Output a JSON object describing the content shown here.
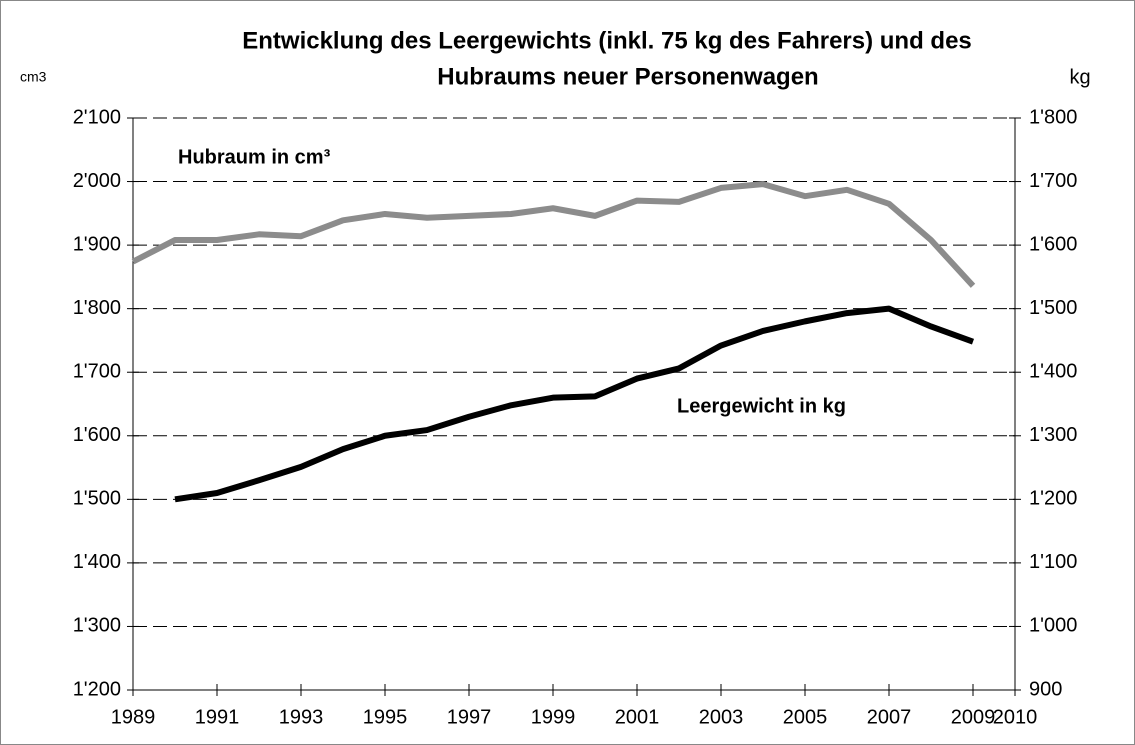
{
  "chart_data": {
    "type": "line",
    "title": [
      "Entwicklung des Leergewichts (inkl. 75 kg des Fahrers) und des",
      "Hubraums neuer Personenwagen"
    ],
    "ylabel": "cm3",
    "y2label": "kg",
    "x": [
      1989,
      1990,
      1991,
      1992,
      1993,
      1994,
      1995,
      1996,
      1997,
      1998,
      1999,
      2000,
      2001,
      2002,
      2003,
      2004,
      2005,
      2006,
      2007,
      2008,
      2009
    ],
    "series": [
      {
        "name": "Hubraum in cm³",
        "color": "#8c8c8c",
        "axis": "y",
        "values": [
          1874,
          1908,
          1908,
          1917,
          1914,
          1939,
          1949,
          1943,
          1946,
          1949,
          1958,
          1946,
          1970,
          1968,
          1990,
          1996,
          1977,
          1987,
          1965,
          1908,
          1836
        ]
      },
      {
        "name": "Leergewicht in kg",
        "color": "#000000",
        "axis": "y2",
        "values": [
          null,
          1200,
          1210,
          1230,
          1251,
          1279,
          1300,
          1309,
          1330,
          1348,
          1360,
          1362,
          1390,
          1406,
          1442,
          1465,
          1480,
          1493,
          1500,
          1472,
          1448
        ]
      }
    ],
    "xlim": [
      1989,
      2010
    ],
    "xticks": [
      1989,
      1991,
      1993,
      1995,
      1997,
      1999,
      2001,
      2003,
      2005,
      2007,
      2009,
      2010
    ],
    "ylim": [
      1200,
      2100
    ],
    "yticks": [
      {
        "value": 1200,
        "label": "1'200"
      },
      {
        "value": 1300,
        "label": "1'300"
      },
      {
        "value": 1400,
        "label": "1'400"
      },
      {
        "value": 1500,
        "label": "1'500"
      },
      {
        "value": 1600,
        "label": "1'600"
      },
      {
        "value": 1700,
        "label": "1'700"
      },
      {
        "value": 1800,
        "label": "1'800"
      },
      {
        "value": 1900,
        "label": "1'900"
      },
      {
        "value": 2000,
        "label": "2'000"
      },
      {
        "value": 2100,
        "label": "2'100"
      }
    ],
    "y2lim": [
      900,
      1800
    ],
    "y2ticks": [
      900,
      {
        "value": 1000,
        "label": "1'000"
      },
      {
        "value": 1100,
        "label": "1'100"
      },
      {
        "value": 1200,
        "label": "1'200"
      },
      {
        "value": 1300,
        "label": "1'300"
      },
      {
        "value": 1400,
        "label": "1'400"
      },
      {
        "value": 1500,
        "label": "1'500"
      },
      {
        "value": 1600,
        "label": "1'600"
      },
      {
        "value": 1700,
        "label": "1'700"
      },
      {
        "value": 1800,
        "label": "1'800"
      }
    ],
    "grid": true
  }
}
